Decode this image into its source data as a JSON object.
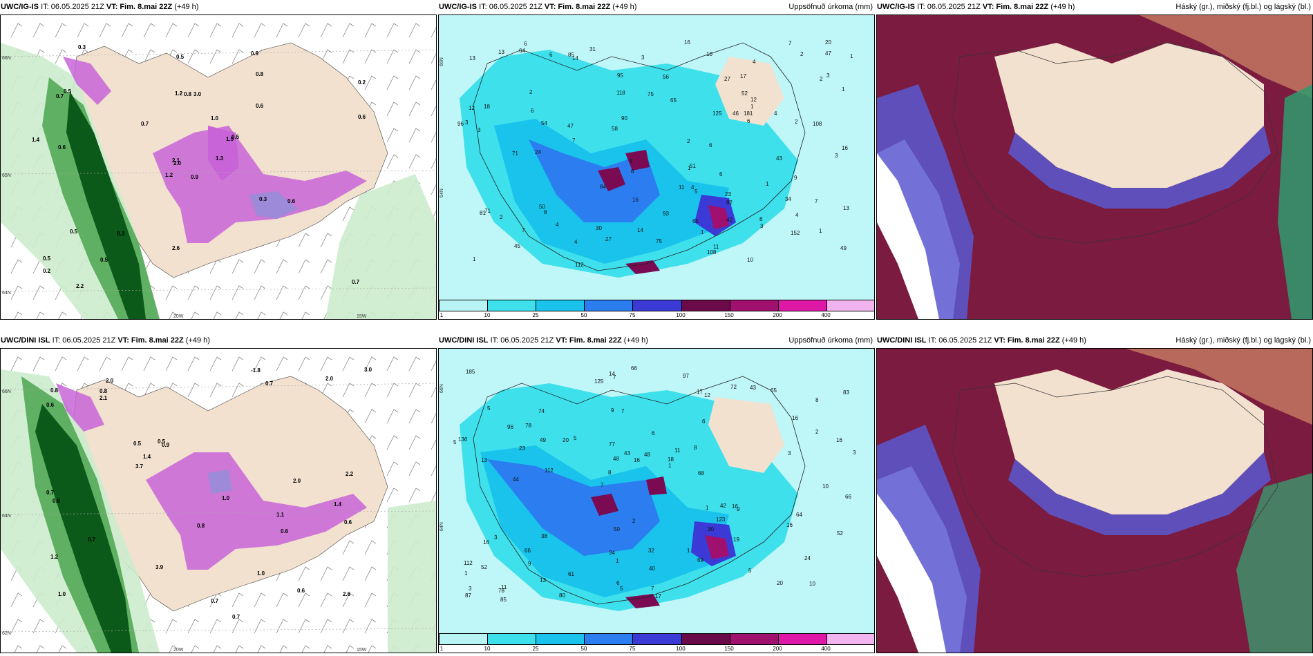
{
  "panels": [
    {
      "id": "p1",
      "model": "UWC/IG-IS",
      "it": "IT: 06.05.2025 21Z",
      "vt_label": "VT:",
      "vt": "Fim. 8.mai 22Z",
      "lead": "(+49 h)",
      "title_right": "",
      "numbers": [
        "0.9",
        "0.7",
        "2.0",
        "0.5",
        "1.5",
        "0.3",
        "0.9",
        "3.0",
        "0.8",
        "1.3",
        "0.3",
        "0.7",
        "0.6",
        "0.2",
        "1.2",
        "0.6",
        "2.2",
        "1.2",
        "1.0",
        "0.5",
        "0.7",
        "0.2",
        "0.5",
        "0.8",
        "0.5",
        "0.6",
        "0.5",
        "0.5",
        "1.4",
        "0.3",
        "0.6",
        "2.1",
        "2.6"
      ],
      "lat_labels": [
        "66N",
        "65N",
        "64N"
      ],
      "lon_labels": [
        "20W",
        "15W"
      ]
    },
    {
      "id": "p2",
      "model": "UWC/IG-IS",
      "it": "IT: 06.05.2025 21Z",
      "vt_label": "VT:",
      "vt": "Fim. 8.mai 22Z",
      "lead": "(+49 h)",
      "title_right": "Uppsöfnuð úrkoma (mm)",
      "numbers": [
        "11",
        "14",
        "8",
        "6",
        "4",
        "1",
        "3",
        "7",
        "6",
        "4",
        "2",
        "12",
        "5",
        "4",
        "6",
        "7",
        "3",
        "2",
        "1",
        "2",
        "8",
        "5",
        "4",
        "3",
        "6",
        "12",
        "24",
        "54",
        "75",
        "95",
        "82",
        "20",
        "17",
        "30",
        "31",
        "14",
        "16",
        "18",
        "16",
        "23",
        "3",
        "2",
        "1",
        "4",
        "10",
        "9",
        "11",
        "16",
        "51",
        "47",
        "84",
        "65",
        "47",
        "52",
        "13",
        "49",
        "152",
        "90",
        "112",
        "81",
        "96",
        "108",
        "181",
        "71",
        "85",
        "45",
        "64",
        "65",
        "42",
        "58",
        "108",
        "125",
        "7",
        "56",
        "27",
        "34",
        "43",
        "50",
        "46",
        "71",
        "75",
        "13",
        "27",
        "93",
        "118",
        "3",
        "6",
        "2",
        "6",
        "6",
        "1",
        "4",
        "1",
        "7",
        "13",
        "3",
        "1",
        "2",
        "1",
        "1",
        "10"
      ],
      "lat_labels": [
        "66N",
        "64N"
      ],
      "colorbar": {
        "labels": [
          "1",
          "10",
          "25",
          "50",
          "75",
          "100",
          "150",
          "200",
          "400"
        ],
        "colors": [
          "#b8f4f4",
          "#3ee0ec",
          "#19c3ec",
          "#2b7df0",
          "#3b3ad6",
          "#6a0a48",
          "#a0106e",
          "#e018a8",
          "#f2b4ee"
        ]
      }
    },
    {
      "id": "p3",
      "model": "UWC/IG-IS",
      "it": "IT: 06.05.2025 21Z",
      "vt_label": "VT:",
      "vt": "Fim. 8.mai 22Z",
      "lead": "(+49 h)",
      "title_right": "Háský (gr.), miðský (fj.bl.) og lágský (bl.)"
    },
    {
      "id": "p4",
      "model": "UWC/DINI ISL",
      "it": "IT: 06.05.2025 21Z",
      "vt_label": "VT:",
      "vt": "Fim. 8.mai 22Z",
      "lead": "(+49 h)",
      "title_right": "",
      "numbers": [
        "1.1",
        "1.4",
        "1.0",
        "2.0",
        "0.9",
        "0.6",
        "1.2",
        "0.7",
        "0.5",
        "0.7",
        "0.6",
        "0.7",
        "0.8",
        "2.6",
        "3.9",
        "2.2",
        "0.8",
        "1.0",
        "0.5",
        "0.7",
        "3.0",
        "2.0",
        "3.7",
        "0.6",
        "-1.8",
        "0.8",
        "0.6",
        "0.6",
        "2.1",
        "2.0",
        "0.7",
        "1.0",
        "1.4"
      ],
      "lat_labels": [
        "66N",
        "64N",
        "62N"
      ],
      "lon_labels": [
        "20W",
        "15W"
      ]
    },
    {
      "id": "p5",
      "model": "UWC/DINI ISL",
      "it": "IT: 06.05.2025 21Z",
      "vt_label": "VT:",
      "vt": "Fim. 8.mai 22Z",
      "lead": "(+49 h)",
      "title_right": "Uppsöfnuð úrkoma (mm)",
      "numbers": [
        "10",
        "13",
        "8",
        "7",
        "6",
        "11",
        "9",
        "6",
        "3",
        "5",
        "1",
        "9",
        "7",
        "11",
        "9",
        "5",
        "7",
        "3",
        "1",
        "2",
        "8",
        "34",
        "48",
        "74",
        "72",
        "38",
        "20",
        "24",
        "16",
        "17",
        "20",
        "23",
        "30",
        "13",
        "16",
        "18",
        "3",
        "1",
        "1",
        "16",
        "16",
        "83",
        "123",
        "69",
        "66",
        "85",
        "87",
        "32",
        "65",
        "66",
        "112",
        "136",
        "78",
        "43",
        "78",
        "97",
        "125",
        "43",
        "52",
        "50",
        "61",
        "42",
        "49",
        "112",
        "185",
        "96",
        "66",
        "77",
        "40",
        "48",
        "52",
        "68",
        "64",
        "6",
        "3",
        "2",
        "5",
        "7",
        "1",
        "14",
        "10",
        "8",
        "19",
        "16",
        "16",
        "5",
        "5",
        "17",
        "12",
        "44",
        "80"
      ],
      "lat_labels": [
        "66N",
        "64N"
      ],
      "colorbar": {
        "labels": [
          "1",
          "10",
          "25",
          "50",
          "75",
          "100",
          "150",
          "200",
          "400"
        ],
        "colors": [
          "#b8f4f4",
          "#3ee0ec",
          "#19c3ec",
          "#2b7df0",
          "#3b3ad6",
          "#6a0a48",
          "#a0106e",
          "#e018a8",
          "#f2b4ee"
        ]
      }
    },
    {
      "id": "p6",
      "model": "UWC/DINI ISL",
      "it": "IT: 06.05.2025 21Z",
      "vt_label": "VT:",
      "vt": "Fim. 8.mai 22Z",
      "lead": "(+49 h)",
      "title_right": "Háský (gr.), miðský (fj.bl.) og lágský (bl.)"
    }
  ],
  "colors": {
    "land": "#f2e1cf",
    "sea_wind": "#ffffff",
    "precip_light": "#cdeccd",
    "precip_mid": "#5fb062",
    "precip_dark": "#0c5a1a",
    "snow_purple": "#c864d8",
    "cloud_high": "#7b1b3f",
    "cloud_mid": "#5a58d0",
    "cloud_low": "#ffffff"
  }
}
